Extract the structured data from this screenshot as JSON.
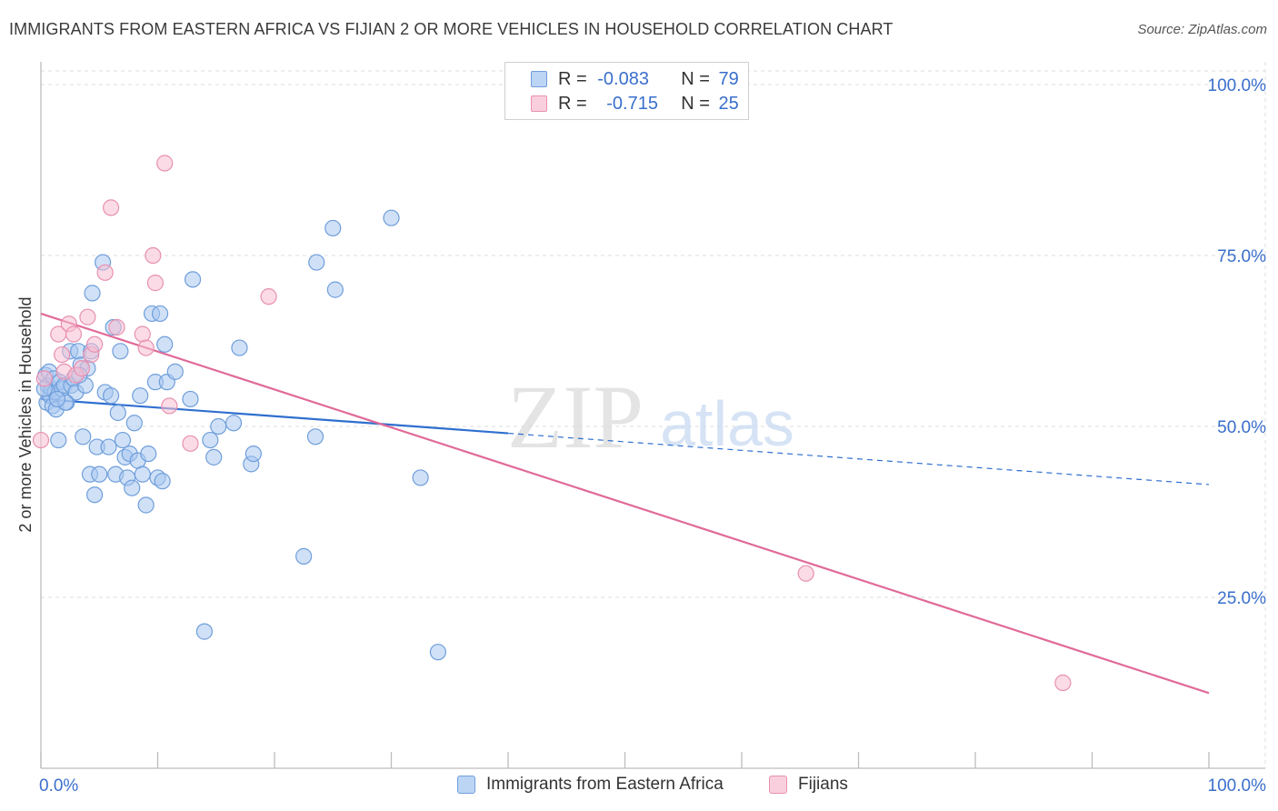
{
  "title": "IMMIGRANTS FROM EASTERN AFRICA VS FIJIAN 2 OR MORE VEHICLES IN HOUSEHOLD CORRELATION CHART",
  "source": "Source: ZipAtlas.com",
  "watermark": {
    "zip": "ZIP",
    "atlas": "atlas"
  },
  "legend": {
    "r_label": "R =",
    "n_label": "N =",
    "series1": {
      "r": "-0.083",
      "n": "79"
    },
    "series2": {
      "r": "-0.715",
      "n": "25"
    }
  },
  "colors": {
    "blue_fill": "#a9c8f0",
    "blue_stroke": "#6f9edb",
    "blue_line": "#2f6fcf",
    "pink_fill": "#f7bfd2",
    "pink_stroke": "#e890b0",
    "pink_line": "#e06a98",
    "tick_label": "#3a6fcc"
  },
  "chart_data": {
    "type": "scatter",
    "title": "IMMIGRANTS FROM EASTERN AFRICA VS FIJIAN 2 OR MORE VEHICLES IN HOUSEHOLD CORRELATION CHART",
    "xlabel": "",
    "ylabel": "2 or more Vehicles in Household",
    "xlim": [
      0,
      100
    ],
    "ylim": [
      0,
      102
    ],
    "x_tick_labels": [
      "0.0%",
      "100.0%"
    ],
    "y_ticks": [
      25,
      50,
      75,
      100
    ],
    "y_tick_labels": [
      "25.0%",
      "50.0%",
      "75.0%",
      "100.0%"
    ],
    "series": [
      {
        "name": "Immigrants from Eastern Africa",
        "color": "#a9c8f0",
        "points": [
          [
            0.4,
            57.5
          ],
          [
            0.5,
            53.5
          ],
          [
            0.6,
            56.0
          ],
          [
            0.7,
            58.0
          ],
          [
            0.8,
            54.5
          ],
          [
            0.9,
            55.5
          ],
          [
            1.0,
            53.0
          ],
          [
            1.1,
            57.0
          ],
          [
            1.2,
            55.0
          ],
          [
            1.3,
            52.5
          ],
          [
            1.5,
            48.0
          ],
          [
            1.6,
            56.5
          ],
          [
            1.8,
            55.5
          ],
          [
            2.0,
            56.0
          ],
          [
            2.2,
            53.5
          ],
          [
            2.5,
            61.0
          ],
          [
            2.6,
            56.0
          ],
          [
            2.8,
            57.0
          ],
          [
            3.0,
            55.0
          ],
          [
            3.2,
            61.0
          ],
          [
            3.4,
            59.0
          ],
          [
            3.6,
            48.5
          ],
          [
            3.8,
            56.0
          ],
          [
            4.0,
            58.5
          ],
          [
            4.2,
            43.0
          ],
          [
            4.4,
            69.5
          ],
          [
            4.6,
            40.0
          ],
          [
            4.8,
            47.0
          ],
          [
            5.0,
            43.0
          ],
          [
            5.5,
            55.0
          ],
          [
            5.3,
            74.0
          ],
          [
            5.8,
            47.0
          ],
          [
            6.0,
            54.5
          ],
          [
            6.2,
            64.5
          ],
          [
            6.4,
            43.0
          ],
          [
            6.6,
            52.0
          ],
          [
            6.8,
            61.0
          ],
          [
            7.0,
            48.0
          ],
          [
            7.2,
            45.5
          ],
          [
            7.4,
            42.5
          ],
          [
            7.6,
            46.0
          ],
          [
            7.8,
            41.0
          ],
          [
            8.0,
            50.5
          ],
          [
            8.3,
            45.0
          ],
          [
            8.5,
            54.5
          ],
          [
            8.7,
            43.0
          ],
          [
            9.0,
            38.5
          ],
          [
            9.2,
            46.0
          ],
          [
            9.5,
            66.5
          ],
          [
            9.8,
            56.5
          ],
          [
            10.0,
            42.5
          ],
          [
            10.2,
            66.5
          ],
          [
            10.4,
            42.0
          ],
          [
            10.6,
            62.0
          ],
          [
            10.8,
            56.5
          ],
          [
            11.5,
            58.0
          ],
          [
            12.8,
            54.0
          ],
          [
            13.0,
            71.5
          ],
          [
            14.0,
            20.0
          ],
          [
            14.5,
            48.0
          ],
          [
            14.8,
            45.5
          ],
          [
            15.2,
            50.0
          ],
          [
            16.5,
            50.5
          ],
          [
            17.0,
            61.5
          ],
          [
            18.0,
            44.5
          ],
          [
            18.2,
            46.0
          ],
          [
            22.5,
            31.0
          ],
          [
            23.5,
            48.5
          ],
          [
            23.6,
            74.0
          ],
          [
            25.0,
            79.0
          ],
          [
            25.2,
            70.0
          ],
          [
            30.0,
            80.5
          ],
          [
            32.5,
            42.5
          ],
          [
            34.0,
            17.0
          ],
          [
            4.3,
            61.0
          ],
          [
            3.3,
            57.5
          ],
          [
            2.1,
            53.5
          ],
          [
            1.4,
            54.0
          ],
          [
            0.3,
            55.5
          ]
        ]
      },
      {
        "name": "Fijians",
        "color": "#f7bfd2",
        "points": [
          [
            0.0,
            48.0
          ],
          [
            0.3,
            57.0
          ],
          [
            1.5,
            63.5
          ],
          [
            1.8,
            60.5
          ],
          [
            2.0,
            58.0
          ],
          [
            2.4,
            65.0
          ],
          [
            2.8,
            63.5
          ],
          [
            3.0,
            57.5
          ],
          [
            3.5,
            58.5
          ],
          [
            4.0,
            66.0
          ],
          [
            4.3,
            60.5
          ],
          [
            4.6,
            62.0
          ],
          [
            5.5,
            72.5
          ],
          [
            6.0,
            82.0
          ],
          [
            6.5,
            64.5
          ],
          [
            8.7,
            63.5
          ],
          [
            9.0,
            61.5
          ],
          [
            9.6,
            75.0
          ],
          [
            9.8,
            71.0
          ],
          [
            10.6,
            88.5
          ],
          [
            11.0,
            53.0
          ],
          [
            12.8,
            47.5
          ],
          [
            19.5,
            69.0
          ],
          [
            65.5,
            28.5
          ],
          [
            87.5,
            12.5
          ]
        ]
      }
    ],
    "trendlines": [
      {
        "series": "Immigrants from Eastern Africa",
        "solid_from": [
          0,
          54.0
        ],
        "solid_to": [
          40,
          49.0
        ],
        "dashed_to": [
          100,
          41.5
        ]
      },
      {
        "series": "Fijians",
        "from": [
          0,
          66.5
        ],
        "to": [
          100,
          11.0
        ]
      }
    ]
  }
}
